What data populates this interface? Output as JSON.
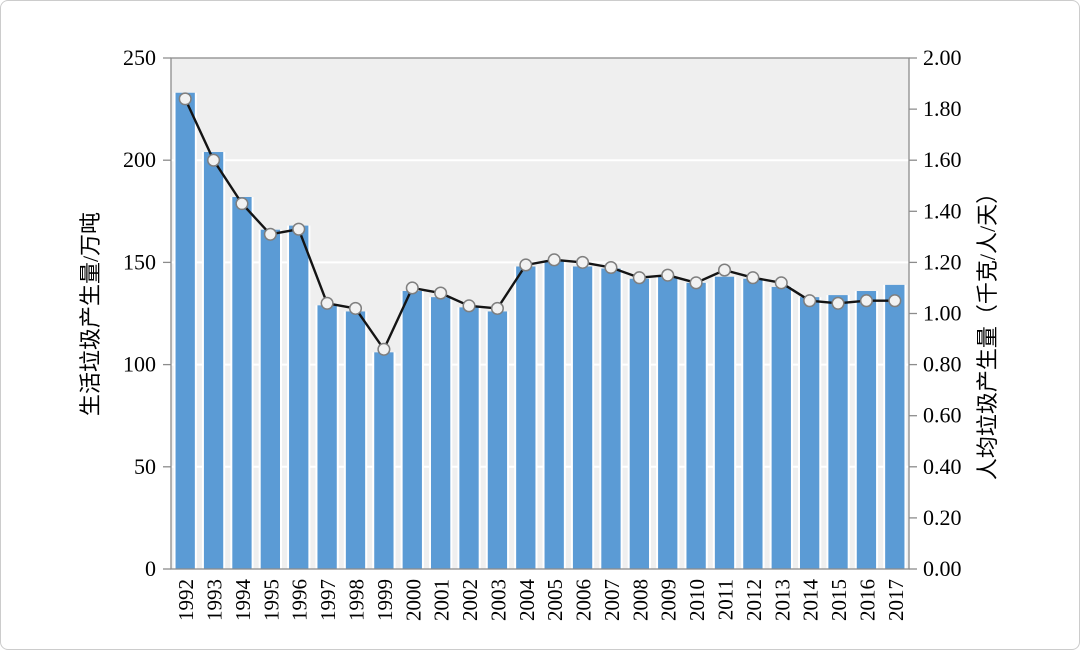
{
  "chart_data": {
    "type": "bar",
    "combo": "bar+line",
    "title": "",
    "categories": [
      "1992",
      "1993",
      "1994",
      "1995",
      "1996",
      "1997",
      "1998",
      "1999",
      "2000",
      "2001",
      "2002",
      "2003",
      "2004",
      "2005",
      "2006",
      "2007",
      "2008",
      "2009",
      "2010",
      "2011",
      "2012",
      "2013",
      "2014",
      "2015",
      "2016",
      "2017"
    ],
    "series": [
      {
        "name": "生活垃圾产生量",
        "type": "bar",
        "axis": "left",
        "values": [
          233,
          204,
          182,
          166,
          168,
          129,
          126,
          106,
          136,
          133,
          128,
          126,
          148,
          151,
          148,
          147,
          142,
          143,
          140,
          143,
          142,
          138,
          133,
          134,
          136,
          139
        ]
      },
      {
        "name": "人均垃圾产生量",
        "type": "line",
        "axis": "right",
        "values": [
          1.84,
          1.6,
          1.43,
          1.31,
          1.33,
          1.04,
          1.02,
          0.86,
          1.1,
          1.08,
          1.03,
          1.02,
          1.19,
          1.21,
          1.2,
          1.18,
          1.14,
          1.15,
          1.12,
          1.17,
          1.14,
          1.12,
          1.05,
          1.04,
          1.05,
          1.05
        ]
      }
    ],
    "left_axis": {
      "label": "生活垃圾产生量/万吨",
      "min": 0,
      "max": 250,
      "step": 50,
      "tick_labels": [
        "0",
        "50",
        "100",
        "150",
        "200",
        "250"
      ]
    },
    "right_axis": {
      "label": "人均垃圾产生量（千克/人/天）",
      "min": 0,
      "max": 2.0,
      "step": 0.2,
      "tick_labels": [
        "0.00",
        "0.20",
        "0.40",
        "0.60",
        "0.80",
        "1.00",
        "1.20",
        "1.40",
        "1.60",
        "1.80",
        "2.00"
      ]
    },
    "x_axis": {
      "label": "",
      "tick_rotation_deg": -90
    },
    "legend": {
      "visible": false
    },
    "grid": {
      "visible": true,
      "interval_left_units": 50
    },
    "colors": {
      "bar": "#5b9bd5",
      "bar_edge": "#ffffff",
      "line": "#141414",
      "marker_fill": "#f2f2f2",
      "marker_stroke": "#7f7f7f",
      "plot_bg": "#efefef",
      "grid": "#ffffff",
      "frame": "#8c8c8c",
      "text": "#000000"
    }
  }
}
